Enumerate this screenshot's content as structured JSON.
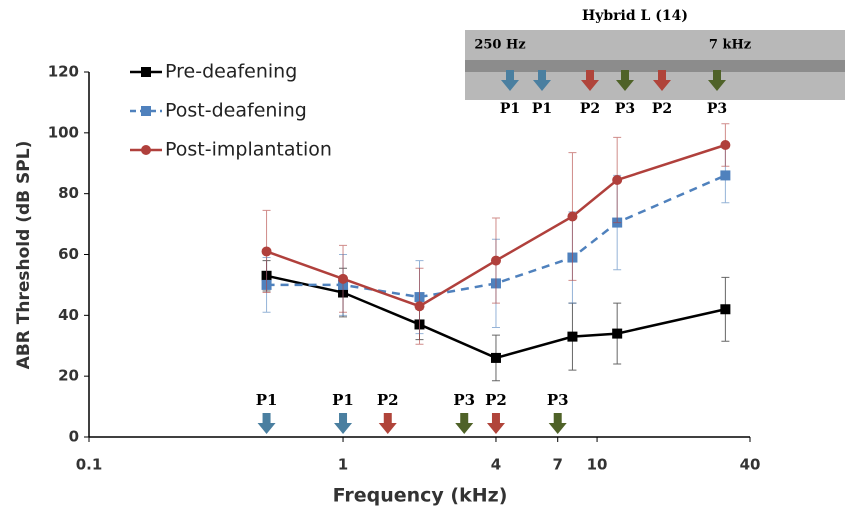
{
  "chart_data": {
    "type": "line",
    "x_label": "Frequency (kHz)",
    "y_label": "ABR Threshold (dB SPL)",
    "x": [
      0.5,
      1,
      2,
      4,
      8,
      12,
      32
    ],
    "xscale": "log",
    "xlim": [
      0.1,
      40
    ],
    "xticks": [
      0.1,
      1,
      4,
      7,
      10,
      40
    ],
    "ylim": [
      0,
      120
    ],
    "yticks": [
      0,
      20,
      40,
      60,
      80,
      100,
      120
    ],
    "legend": "upper left",
    "series": [
      {
        "name": "Pre-deafening",
        "color": "#000000",
        "marker": "square",
        "dash": false,
        "values": [
          53,
          47.5,
          37,
          26,
          33,
          34,
          42
        ],
        "errors": [
          5,
          8,
          5,
          7.5,
          11,
          10,
          10.5
        ]
      },
      {
        "name": "Post-deafening",
        "color": "#4f81bd",
        "marker": "square",
        "dash": true,
        "values": [
          50,
          50,
          46,
          50.5,
          59,
          70.5,
          86
        ],
        "errors": [
          9,
          10,
          12,
          14.5,
          15,
          15.5,
          9
        ]
      },
      {
        "name": "Post-implantation",
        "color": "#b0403c",
        "marker": "circle",
        "dash": false,
        "values": [
          61,
          52,
          43,
          58,
          72.5,
          84.5,
          96
        ],
        "errors": [
          13.5,
          11,
          12.5,
          14,
          21,
          14,
          7
        ]
      }
    ],
    "arrows": [
      {
        "label": "P1",
        "x": 0.5,
        "color": "#4a7fa0"
      },
      {
        "label": "P1",
        "x": 1,
        "color": "#4a7fa0"
      },
      {
        "label": "P2",
        "x": 1.5,
        "color": "#b0443a"
      },
      {
        "label": "P3",
        "x": 3,
        "color": "#4f6228"
      },
      {
        "label": "P2",
        "x": 4,
        "color": "#b0443a"
      },
      {
        "label": "P3",
        "x": 7,
        "color": "#4f6228"
      }
    ],
    "inset": {
      "title": "Hybrid L (14)",
      "low_label": "250 Hz",
      "high_label": "7 kHz",
      "arrows": [
        {
          "label": "P1",
          "color": "#4a7fa0"
        },
        {
          "label": "P1",
          "color": "#4a7fa0"
        },
        {
          "label": "P2",
          "color": "#b0443a"
        },
        {
          "label": "P3",
          "color": "#4f6228"
        },
        {
          "label": "P2",
          "color": "#b0443a"
        },
        {
          "label": "P3",
          "color": "#4f6228"
        }
      ]
    }
  }
}
